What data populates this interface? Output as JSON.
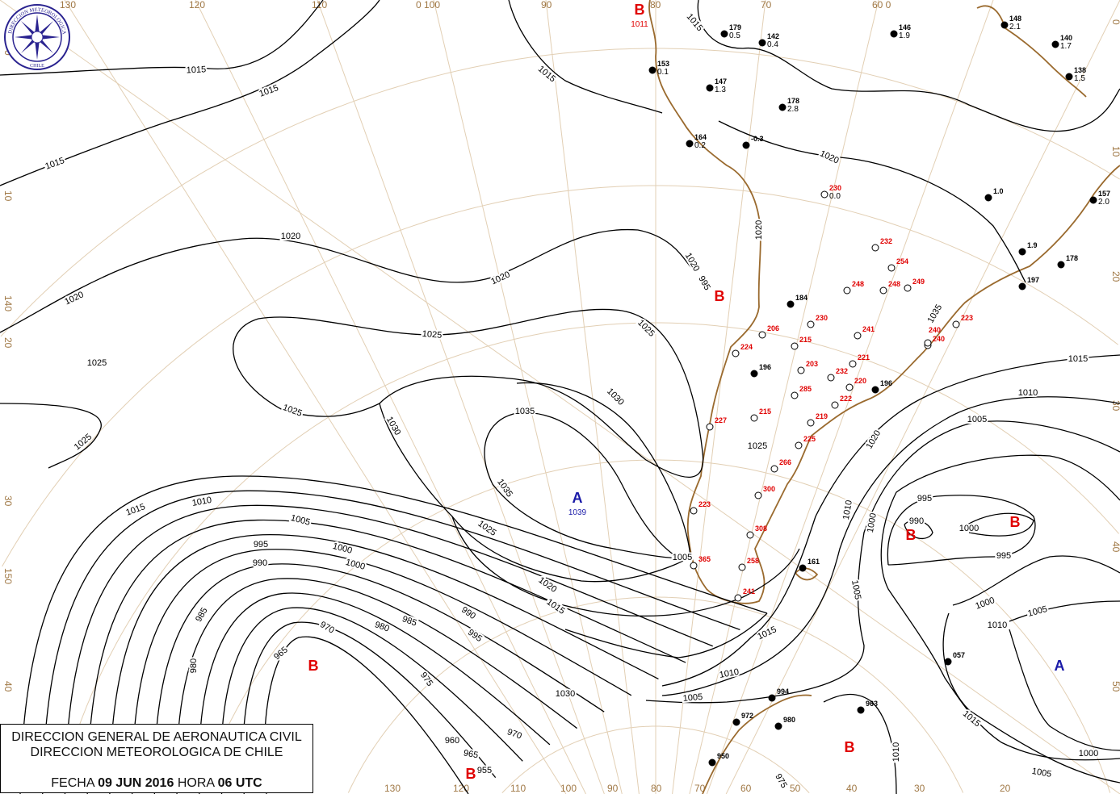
{
  "header": {
    "org_line1": "DIRECCION GENERAL DE AERONAUTICA CIVIL",
    "org_line2": "DIRECCION METEOROLOGICA DE CHILE",
    "date_label": "FECHA",
    "date_value": "09 JUN 2016",
    "hour_label": "HORA",
    "hour_value": "06 UTC"
  },
  "logo": {
    "text_top": "DIRECCION METEOROLOGICA",
    "text_bottom": "CHILE"
  },
  "colors": {
    "isobar": "#000000",
    "coast": "#9a6a2e",
    "grid": "#e2cfb4",
    "low": "#e00000",
    "high": "#1a1aa8",
    "station_red": "#e00000"
  },
  "grid_labels": {
    "top": [
      "130",
      "120",
      "110",
      "0 100",
      "90",
      "80",
      "70",
      "60 0"
    ],
    "bottom": [
      "130",
      "120",
      "110",
      "100",
      "90",
      "80",
      "70",
      "60",
      "50",
      "40",
      "30",
      "20"
    ],
    "left": [
      "0",
      "10",
      "140",
      "20",
      "30",
      "150",
      "40"
    ],
    "right": [
      "0",
      "10",
      "20",
      "30",
      "40",
      "50"
    ]
  },
  "pressure_centers": [
    {
      "type": "B",
      "value": "1011"
    },
    {
      "type": "B",
      "value": ""
    },
    {
      "type": "A",
      "value": "1039"
    },
    {
      "type": "B",
      "value": ""
    },
    {
      "type": "B",
      "value": ""
    },
    {
      "type": "B",
      "value": ""
    },
    {
      "type": "B",
      "value": ""
    },
    {
      "type": "A",
      "value": ""
    },
    {
      "type": "B",
      "value": ""
    }
  ],
  "isobar_labels": [
    "1015",
    "1015",
    "1015",
    "1015",
    "1015",
    "1020",
    "1020",
    "1020",
    "1020",
    "1020",
    "1025",
    "1025",
    "1025",
    "1025",
    "1030",
    "1035",
    "1035",
    "1030",
    "1025",
    "1020",
    "1015",
    "1010",
    "1005",
    "1000",
    "995",
    "990",
    "985",
    "980",
    "975",
    "970",
    "965",
    "1015",
    "1010",
    "1005",
    "1000",
    "995",
    "990",
    "985",
    "980",
    "975",
    "970",
    "965",
    "960",
    "955",
    "1025",
    "1020",
    "1015",
    "1010",
    "1005",
    "1000",
    "995",
    "990",
    "1015",
    "1010",
    "1005",
    "1000",
    "995",
    "1000",
    "1005",
    "1010",
    "1015",
    "1000",
    "1005",
    "1010",
    "1005",
    "995",
    "1035",
    "1020",
    "1025",
    "1030"
  ],
  "sw_isobars": [
    "1020",
    "1015",
    "1010",
    "1005",
    "1000",
    "995",
    "990",
    "985",
    "980",
    "975",
    "970",
    "965"
  ],
  "stations": [
    {
      "id": "153",
      "extra": "0.1",
      "color": "black"
    },
    {
      "id": "147",
      "extra": "1.3",
      "color": "black"
    },
    {
      "id": "179",
      "extra": "0.5",
      "color": "black"
    },
    {
      "id": "142",
      "extra": "0.4",
      "color": "black"
    },
    {
      "id": "146",
      "extra": "1.9",
      "color": "black"
    },
    {
      "id": "148",
      "extra": "2.1",
      "color": "black"
    },
    {
      "id": "140",
      "extra": "1.7",
      "color": "black"
    },
    {
      "id": "138",
      "extra": "1.5",
      "color": "black"
    },
    {
      "id": "178",
      "extra": "2.8",
      "color": "black"
    },
    {
      "id": "164",
      "extra": "0.2",
      "color": "black"
    },
    {
      "id": "157",
      "extra": "2.0",
      "color": "black"
    },
    {
      "id": "178",
      "extra": "",
      "color": "black"
    },
    {
      "id": "197",
      "extra": "",
      "color": "black"
    },
    {
      "id": "184",
      "extra": "",
      "color": "black"
    },
    {
      "id": "196",
      "extra": "",
      "color": "black"
    },
    {
      "id": "227",
      "extra": "",
      "color": "red"
    },
    {
      "id": "230",
      "extra": "0.0",
      "color": "red"
    },
    {
      "id": "232",
      "extra": "",
      "color": "red"
    },
    {
      "id": "254",
      "extra": "",
      "color": "red"
    },
    {
      "id": "248",
      "extra": "",
      "color": "red"
    },
    {
      "id": "249",
      "extra": "",
      "color": "red"
    },
    {
      "id": "223",
      "extra": "",
      "color": "red"
    },
    {
      "id": "240",
      "extra": "",
      "color": "red"
    },
    {
      "id": "241",
      "extra": "",
      "color": "red"
    },
    {
      "id": "206",
      "extra": "",
      "color": "red"
    },
    {
      "id": "215",
      "extra": "",
      "color": "red"
    },
    {
      "id": "224",
      "extra": "",
      "color": "red"
    },
    {
      "id": "230",
      "extra": "",
      "color": "red"
    },
    {
      "id": "203",
      "extra": "",
      "color": "red"
    },
    {
      "id": "232",
      "extra": "",
      "color": "red"
    },
    {
      "id": "220",
      "extra": "",
      "color": "red"
    },
    {
      "id": "285",
      "extra": "",
      "color": "red"
    },
    {
      "id": "222",
      "extra": "",
      "color": "red"
    },
    {
      "id": "215",
      "extra": "",
      "color": "red"
    },
    {
      "id": "219",
      "extra": "",
      "color": "red"
    },
    {
      "id": "225",
      "extra": "",
      "color": "red"
    },
    {
      "id": "266",
      "extra": "",
      "color": "red"
    },
    {
      "id": "300",
      "extra": "",
      "color": "red"
    },
    {
      "id": "308",
      "extra": "",
      "color": "red"
    },
    {
      "id": "258",
      "extra": "",
      "color": "red"
    },
    {
      "id": "241",
      "extra": "",
      "color": "red"
    },
    {
      "id": "365",
      "extra": "",
      "color": "red"
    },
    {
      "id": "223",
      "extra": "",
      "color": "red"
    },
    {
      "id": "196",
      "extra": "",
      "color": "black"
    },
    {
      "id": "161",
      "extra": "",
      "color": "black"
    },
    {
      "id": "057",
      "extra": "",
      "color": "black"
    },
    {
      "id": "994",
      "extra": "",
      "color": "black"
    },
    {
      "id": "972",
      "extra": "",
      "color": "black"
    },
    {
      "id": "980",
      "extra": "",
      "color": "black"
    },
    {
      "id": "950",
      "extra": "",
      "color": "black"
    },
    {
      "id": "963",
      "extra": "",
      "color": "black"
    },
    {
      "id": "248",
      "extra": "",
      "color": "red"
    },
    {
      "id": "221",
      "extra": "",
      "color": "red"
    },
    {
      "id": "240",
      "extra": "",
      "color": "red"
    },
    {
      "id": "1.9",
      "extra": "",
      "color": "black"
    },
    {
      "id": "1.0",
      "extra": "",
      "color": "black"
    },
    {
      "id": "-0.3",
      "extra": "",
      "color": "black"
    }
  ]
}
